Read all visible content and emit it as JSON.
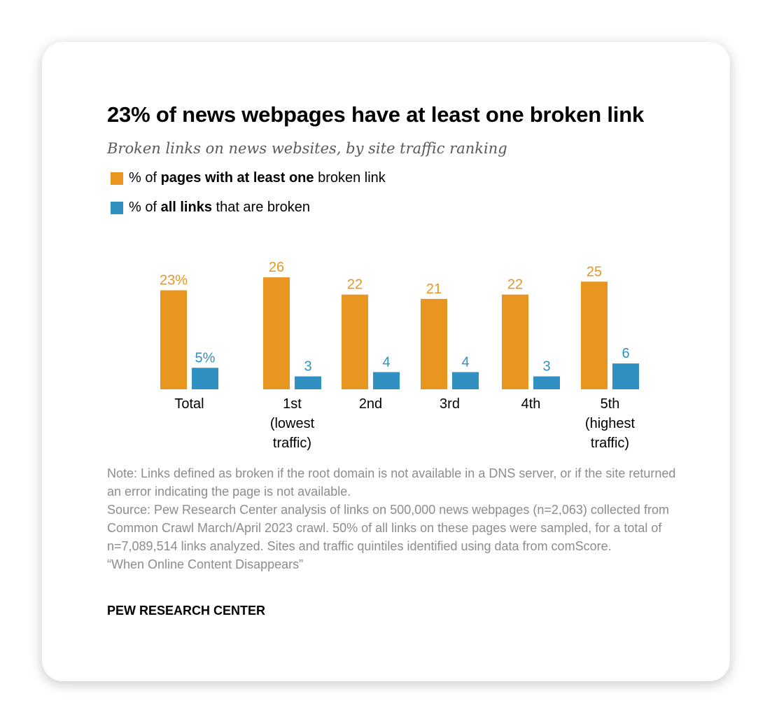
{
  "title": "23% of news webpages have at least one broken link",
  "subtitle": "Broken links on news websites, by site traffic ranking",
  "colors": {
    "orange": "#e8961f",
    "blue": "#3190c2"
  },
  "legend": [
    {
      "pre": "% of ",
      "bold": "pages with at least one",
      "post": " broken link",
      "color": "#e8961f"
    },
    {
      "pre": "% of ",
      "bold": "all links",
      "post": " that are broken",
      "color": "#3190c2"
    }
  ],
  "chart_data": {
    "type": "bar",
    "categories": [
      [
        "Total"
      ],
      [
        "1st",
        "(lowest",
        "traffic)"
      ],
      [
        "2nd"
      ],
      [
        "3rd"
      ],
      [
        "4th"
      ],
      [
        "5th",
        "(highest",
        "traffic)"
      ]
    ],
    "series": [
      {
        "name": "% of pages with at least one broken link",
        "values": [
          23,
          26,
          22,
          21,
          22,
          25
        ],
        "labels": [
          "23%",
          "26",
          "22",
          "21",
          "22",
          "25"
        ],
        "color": "#e8961f"
      },
      {
        "name": "% of all links that are broken",
        "values": [
          5,
          3,
          4,
          4,
          3,
          6
        ],
        "labels": [
          "5%",
          "3",
          "4",
          "4",
          "3",
          "6"
        ],
        "color": "#3190c2"
      }
    ],
    "ylim": [
      0,
      30
    ],
    "grid": false
  },
  "notes": {
    "note": "Note: Links defined as broken if the root domain is not available in a DNS server, or if the site returned an error indicating the page is not available.",
    "source": "Source: Pew Research Center analysis of links on 500,000 news webpages (n=2,063) collected from Common Crawl March/April 2023 crawl. 50% of all links on these pages were sampled, for a total of n=7,089,514 links analyzed. Sites and traffic quintiles identified using data from comScore.",
    "report": "“When Online Content Disappears”"
  },
  "brand": "PEW RESEARCH CENTER"
}
